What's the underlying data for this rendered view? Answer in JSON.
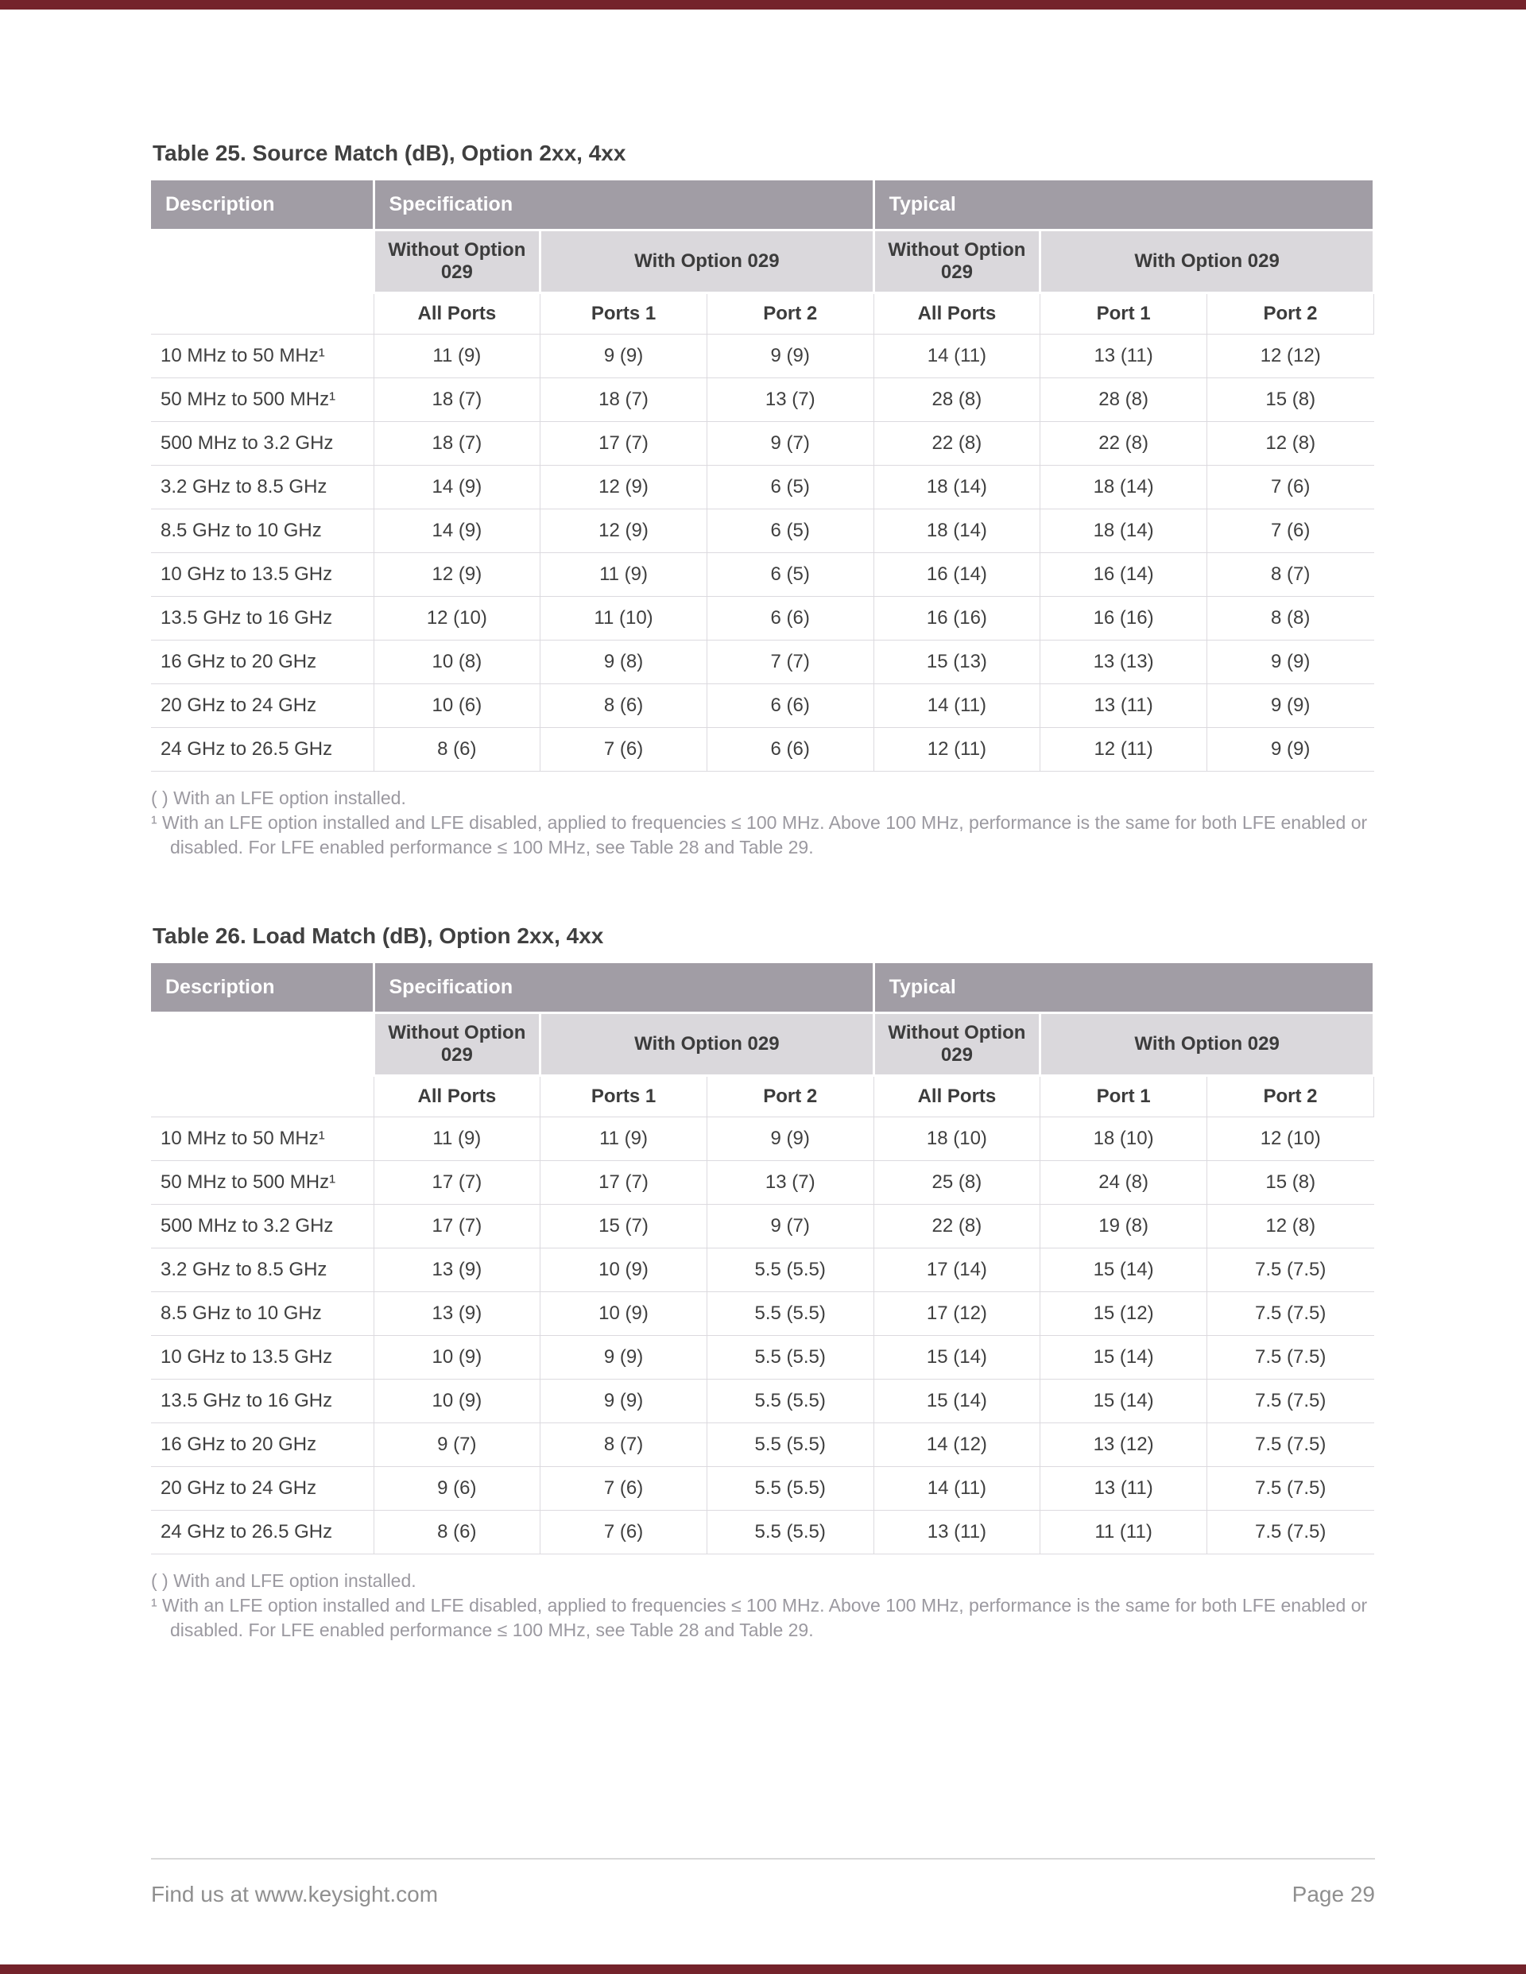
{
  "colors": {
    "accent": "#74232b",
    "header_bg": "#a19da5",
    "subheader_bg": "#dad8dc"
  },
  "page": {
    "footer": {
      "left": "Find us at www.keysight.com",
      "right": "Page 29"
    }
  },
  "tables": [
    {
      "title": "Table 25. Source Match (dB), Option 2xx, 4xx",
      "header": {
        "description": "Description",
        "specification": "Specification",
        "typical": "Typical",
        "without_029_spec": "Without Option 029",
        "with_029_spec": "With Option 029",
        "without_029_typ": "Without Option 029",
        "with_029_typ": "With Option 029",
        "sub": [
          "All Ports",
          "Ports 1",
          "Port 2",
          "All Ports",
          "Port 1",
          "Port 2"
        ]
      },
      "rows": [
        {
          "label": "10 MHz to 50 MHz¹",
          "values": [
            "11 (9)",
            "9 (9)",
            "9 (9)",
            "14 (11)",
            "13 (11)",
            "12 (12)"
          ]
        },
        {
          "label": "50 MHz to 500 MHz¹",
          "values": [
            "18 (7)",
            "18 (7)",
            "13 (7)",
            "28 (8)",
            "28 (8)",
            "15 (8)"
          ]
        },
        {
          "label": "500 MHz to 3.2 GHz",
          "values": [
            "18 (7)",
            "17 (7)",
            "9 (7)",
            "22 (8)",
            "22 (8)",
            "12 (8)"
          ]
        },
        {
          "label": "3.2 GHz to 8.5 GHz",
          "values": [
            "14 (9)",
            "12 (9)",
            "6 (5)",
            "18 (14)",
            "18 (14)",
            "7 (6)"
          ]
        },
        {
          "label": "8.5 GHz to 10 GHz",
          "values": [
            "14 (9)",
            "12 (9)",
            "6 (5)",
            "18 (14)",
            "18 (14)",
            "7 (6)"
          ]
        },
        {
          "label": "10 GHz to 13.5 GHz",
          "values": [
            "12 (9)",
            "11 (9)",
            "6 (5)",
            "16 (14)",
            "16 (14)",
            "8 (7)"
          ]
        },
        {
          "label": "13.5 GHz to 16 GHz",
          "values": [
            "12 (10)",
            "11 (10)",
            "6 (6)",
            "16 (16)",
            "16 (16)",
            "8 (8)"
          ]
        },
        {
          "label": "16 GHz to 20 GHz",
          "values": [
            "10 (8)",
            "9 (8)",
            "7 (7)",
            "15 (13)",
            "13 (13)",
            "9 (9)"
          ]
        },
        {
          "label": "20 GHz to 24 GHz",
          "values": [
            "10 (6)",
            "8 (6)",
            "6 (6)",
            "14 (11)",
            "13 (11)",
            "9 (9)"
          ]
        },
        {
          "label": "24 GHz to 26.5 GHz",
          "values": [
            "8 (6)",
            "7 (6)",
            "6 (6)",
            "12 (11)",
            "12 (11)",
            "9 (9)"
          ]
        }
      ],
      "footnotes": [
        "( ) With an LFE option installed.",
        "¹ With an LFE option installed and LFE disabled, applied to frequencies ≤ 100 MHz. Above 100 MHz, performance is the same for both LFE enabled or disabled. For LFE enabled performance ≤ 100 MHz, see Table 28 and Table 29."
      ]
    },
    {
      "title": "Table 26. Load Match (dB), Option 2xx, 4xx",
      "header": {
        "description": "Description",
        "specification": "Specification",
        "typical": "Typical",
        "without_029_spec": "Without Option 029",
        "with_029_spec": "With Option 029",
        "without_029_typ": "Without Option 029",
        "with_029_typ": "With Option 029",
        "sub": [
          "All Ports",
          "Ports 1",
          "Port 2",
          "All Ports",
          "Port 1",
          "Port 2"
        ]
      },
      "rows": [
        {
          "label": "10 MHz to 50 MHz¹",
          "values": [
            "11 (9)",
            "11 (9)",
            "9 (9)",
            "18 (10)",
            "18 (10)",
            "12 (10)"
          ]
        },
        {
          "label": "50 MHz to 500 MHz¹",
          "values": [
            "17 (7)",
            "17 (7)",
            "13 (7)",
            "25 (8)",
            "24 (8)",
            "15 (8)"
          ]
        },
        {
          "label": "500 MHz to 3.2 GHz",
          "values": [
            "17 (7)",
            "15 (7)",
            "9 (7)",
            "22 (8)",
            "19 (8)",
            "12 (8)"
          ]
        },
        {
          "label": "3.2 GHz to 8.5 GHz",
          "values": [
            "13 (9)",
            "10 (9)",
            "5.5 (5.5)",
            "17 (14)",
            "15 (14)",
            "7.5 (7.5)"
          ]
        },
        {
          "label": "8.5 GHz to 10 GHz",
          "values": [
            "13 (9)",
            "10 (9)",
            "5.5 (5.5)",
            "17 (12)",
            "15 (12)",
            "7.5 (7.5)"
          ]
        },
        {
          "label": "10 GHz to 13.5 GHz",
          "values": [
            "10 (9)",
            "9 (9)",
            "5.5 (5.5)",
            "15 (14)",
            "15 (14)",
            "7.5 (7.5)"
          ]
        },
        {
          "label": "13.5 GHz to 16 GHz",
          "values": [
            "10 (9)",
            "9 (9)",
            "5.5 (5.5)",
            "15 (14)",
            "15 (14)",
            "7.5 (7.5)"
          ]
        },
        {
          "label": "16 GHz to 20 GHz",
          "values": [
            "9 (7)",
            "8 (7)",
            "5.5 (5.5)",
            "14 (12)",
            "13 (12)",
            "7.5 (7.5)"
          ]
        },
        {
          "label": "20 GHz to 24 GHz",
          "values": [
            "9 (6)",
            "7 (6)",
            "5.5 (5.5)",
            "14 (11)",
            "13 (11)",
            "7.5 (7.5)"
          ]
        },
        {
          "label": "24 GHz to 26.5 GHz",
          "values": [
            "8 (6)",
            "7 (6)",
            "5.5 (5.5)",
            "13 (11)",
            "11 (11)",
            "7.5 (7.5)"
          ]
        }
      ],
      "footnotes": [
        "( ) With and LFE option installed.",
        "¹ With an LFE option installed and LFE disabled, applied to frequencies ≤ 100 MHz. Above 100 MHz, performance is the same for both LFE enabled or disabled. For LFE enabled performance ≤ 100 MHz, see Table 28 and Table 29."
      ]
    }
  ]
}
